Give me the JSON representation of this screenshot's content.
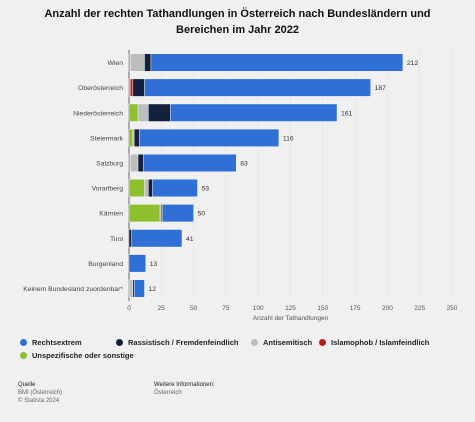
{
  "chart_data": {
    "type": "bar",
    "orientation": "horizontal",
    "stacked": true,
    "title": "Anzahl der rechten Tathandlungen in Österreich nach Bundesländern und Bereichen im Jahr 2022",
    "xlabel": "Anzahl der Tathandlungen",
    "ylabel": "",
    "xlim": [
      0,
      250
    ],
    "xticks": [
      "0",
      "25",
      "50",
      "75",
      "100",
      "125",
      "150",
      "175",
      "200",
      "225",
      "250"
    ],
    "grid": true,
    "legend_position": "bottom",
    "categories": [
      "Wien",
      "Oberösterreich",
      "Niederösterreich",
      "Steiermark",
      "Salzburg",
      "Vorarlberg",
      "Kärnten",
      "Tirol",
      "Burgenland",
      "Keinem Bundesland zuordenbar*"
    ],
    "totals": [
      "212",
      "187",
      "161",
      "116",
      "83",
      "53",
      "50",
      "41",
      "13",
      "12"
    ],
    "series": [
      {
        "name": "Unspezifische oder sonstige",
        "color": "#8dbf2f",
        "values": [
          1,
          1,
          7,
          3,
          1,
          12,
          24,
          0,
          0,
          0
        ]
      },
      {
        "name": "Antisemitisch",
        "color": "#bdbdbd",
        "values": [
          11,
          0,
          8,
          1,
          6,
          3,
          1,
          0,
          0,
          3
        ]
      },
      {
        "name": "Islamophob / Islamfeindlich",
        "color": "#b81c1c",
        "values": [
          0,
          2,
          0,
          0,
          0,
          0,
          0,
          0,
          0,
          0
        ]
      },
      {
        "name": "Rassistisch / Fremdenfeindlich",
        "color": "#14213d",
        "values": [
          5,
          9,
          17,
          4,
          4,
          3,
          1,
          2,
          0,
          1
        ]
      },
      {
        "name": "Rechtsextrem",
        "color": "#2f6fd6",
        "values": [
          195,
          175,
          129,
          108,
          72,
          35,
          24,
          39,
          13,
          8
        ]
      }
    ]
  },
  "legend": [
    {
      "label": "Rechtsextrem",
      "color": "#2f6fd6"
    },
    {
      "label": "Rassistisch / Fremdenfeindlich",
      "color": "#14213d"
    },
    {
      "label": "Antisemitisch",
      "color": "#bdbdbd"
    },
    {
      "label": "Islamophob / Islamfeindlich",
      "color": "#b81c1c"
    },
    {
      "label": "Unspezifische oder sonstige",
      "color": "#8dbf2f"
    }
  ],
  "footer": {
    "source_heading": "Quelle",
    "source_line1": "BMI (Österreich)",
    "source_line2": "© Statista 2024",
    "info_heading": "Weitere Informationen:",
    "info_line1": "Österreich"
  }
}
